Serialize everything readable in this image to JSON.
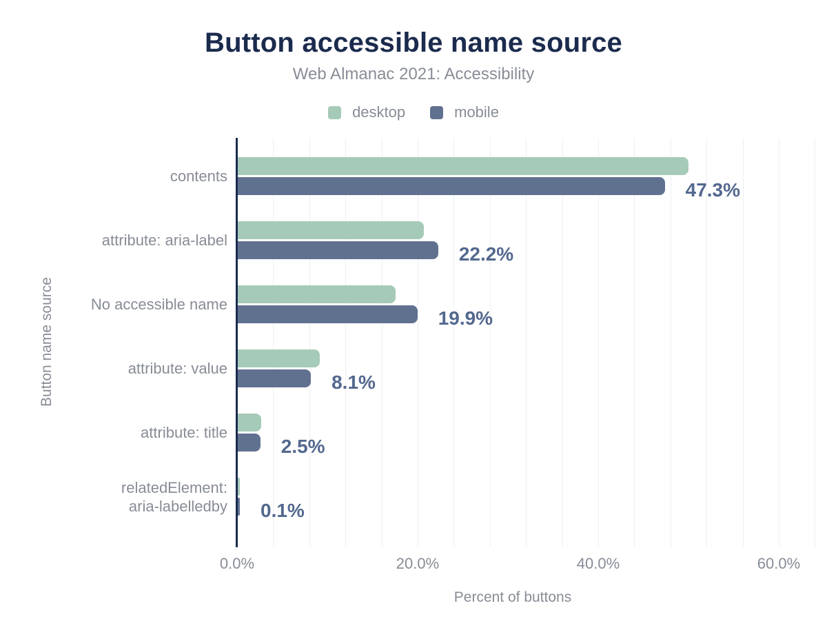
{
  "header": {
    "title": "Button accessible name source",
    "subtitle": "Web Almanac 2021: Accessibility"
  },
  "legend": {
    "items": [
      {
        "label": "desktop",
        "color": "#a6cab8"
      },
      {
        "label": "mobile",
        "color": "#60718f"
      }
    ]
  },
  "chart_data": {
    "type": "bar",
    "orientation": "horizontal",
    "title": "Button accessible name source",
    "subtitle": "Web Almanac 2021: Accessibility",
    "xlabel": "Percent of buttons",
    "ylabel": "Button name source",
    "categories": [
      "contents",
      "attribute: aria-label",
      "No accessible name",
      "attribute: value",
      "attribute: title",
      "relatedElement:\naria-labelledby"
    ],
    "series": [
      {
        "name": "desktop",
        "color": "#a6cab8",
        "values": [
          49.9,
          20.6,
          17.5,
          9.1,
          2.6,
          0.1
        ]
      },
      {
        "name": "mobile",
        "color": "#60718f",
        "values": [
          47.3,
          22.2,
          19.9,
          8.1,
          2.5,
          0.1
        ]
      }
    ],
    "annotations": {
      "series": "mobile",
      "labels": [
        "47.3%",
        "22.2%",
        "19.9%",
        "8.1%",
        "2.5%",
        "0.1%"
      ],
      "color": "#53688e"
    },
    "x_ticks": [
      {
        "value": 0,
        "label": "0.0%"
      },
      {
        "value": 20,
        "label": "20.0%"
      },
      {
        "value": 40,
        "label": "40.0%"
      },
      {
        "value": 60,
        "label": "60.0%"
      }
    ],
    "xlim": [
      0,
      64.7
    ],
    "minor_grid_step": 4,
    "grid": true,
    "legend_position": "top",
    "axis_color": "#1b2b4d",
    "grid_color": "#edeff2",
    "label_color": "#878c95"
  }
}
